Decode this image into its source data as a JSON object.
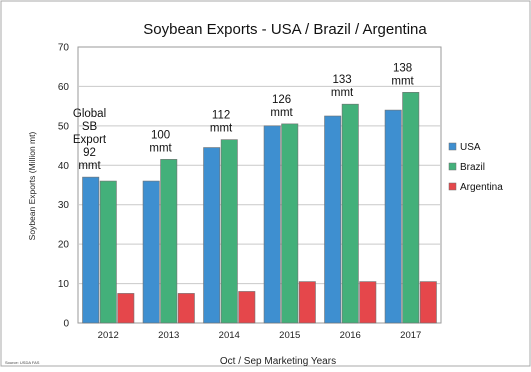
{
  "chart_data": {
    "type": "bar",
    "title": "Soybean Exports - USA / Brazil / Argentina",
    "xlabel": "Oct / Sep Marketing Years",
    "ylabel": "Soybean Exports (Million mt)",
    "ylim": [
      0,
      70
    ],
    "yticks": [
      0,
      10,
      20,
      30,
      40,
      50,
      60,
      70
    ],
    "categories": [
      "2012",
      "2013",
      "2014",
      "2015",
      "2016",
      "2017"
    ],
    "series": [
      {
        "name": "USA",
        "color": "#3e8fd0",
        "values": [
          37,
          36,
          44.5,
          50,
          52.5,
          54
        ]
      },
      {
        "name": "Brazil",
        "color": "#43b07a",
        "values": [
          36,
          41.5,
          46.5,
          50.5,
          55.5,
          58.5
        ]
      },
      {
        "name": "Argentina",
        "color": "#e5474b",
        "values": [
          7.5,
          7.5,
          8,
          10.5,
          10.5,
          10.5
        ]
      }
    ],
    "legend_position": "right",
    "grid": true,
    "annotations": [
      {
        "category": "2012",
        "lines": [
          "Global",
          "SB",
          "Export",
          "92",
          "mmt"
        ]
      },
      {
        "category": "2013",
        "lines": [
          "100",
          "mmt"
        ]
      },
      {
        "category": "2014",
        "lines": [
          "112",
          "mmt"
        ]
      },
      {
        "category": "2015",
        "lines": [
          "126",
          "mmt"
        ]
      },
      {
        "category": "2016",
        "lines": [
          "133",
          "mmt"
        ]
      },
      {
        "category": "2017",
        "lines": [
          "138",
          "mmt"
        ]
      }
    ],
    "source": "Source: USDA FAS"
  }
}
